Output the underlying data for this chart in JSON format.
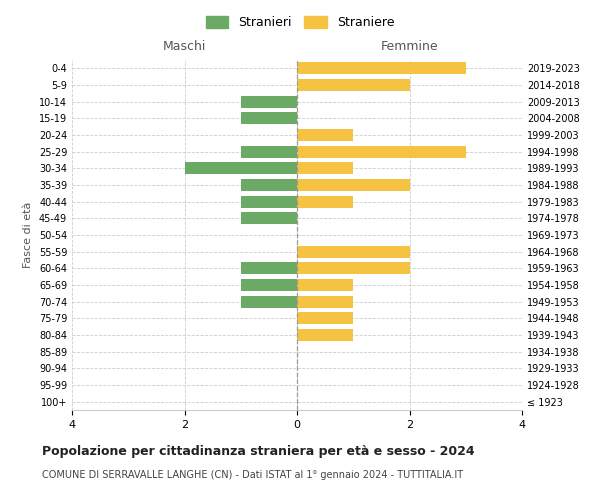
{
  "age_groups": [
    "100+",
    "95-99",
    "90-94",
    "85-89",
    "80-84",
    "75-79",
    "70-74",
    "65-69",
    "60-64",
    "55-59",
    "50-54",
    "45-49",
    "40-44",
    "35-39",
    "30-34",
    "25-29",
    "20-24",
    "15-19",
    "10-14",
    "5-9",
    "0-4"
  ],
  "birth_years": [
    "≤ 1923",
    "1924-1928",
    "1929-1933",
    "1934-1938",
    "1939-1943",
    "1944-1948",
    "1949-1953",
    "1954-1958",
    "1959-1963",
    "1964-1968",
    "1969-1973",
    "1974-1978",
    "1979-1983",
    "1984-1988",
    "1989-1993",
    "1994-1998",
    "1999-2003",
    "2004-2008",
    "2009-2013",
    "2014-2018",
    "2019-2023"
  ],
  "maschi": [
    0,
    0,
    0,
    0,
    0,
    0,
    1,
    1,
    1,
    0,
    0,
    1,
    1,
    1,
    2,
    1,
    0,
    1,
    1,
    0,
    0
  ],
  "femmine": [
    0,
    0,
    0,
    0,
    1,
    1,
    1,
    1,
    2,
    2,
    0,
    0,
    1,
    2,
    1,
    3,
    1,
    0,
    0,
    2,
    3
  ],
  "color_maschi": "#6aaa64",
  "color_femmine": "#f5c242",
  "title": "Popolazione per cittadinanza straniera per età e sesso - 2024",
  "subtitle": "COMUNE DI SERRAVALLE LANGHE (CN) - Dati ISTAT al 1° gennaio 2024 - TUTTITALIA.IT",
  "xlabel_left": "Maschi",
  "xlabel_right": "Femmine",
  "ylabel_left": "Fasce di età",
  "legend_stranieri": "Stranieri",
  "legend_straniere": "Straniere",
  "xlim": 4,
  "background_color": "#ffffff",
  "grid_color": "#cccccc"
}
